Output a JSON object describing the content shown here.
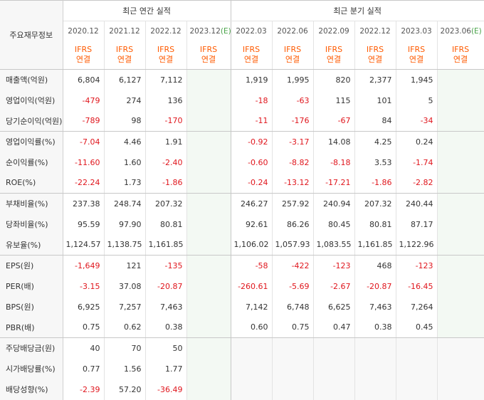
{
  "header": {
    "row_label": "주요재무정보",
    "annual_title": "최근 연간 실적",
    "quarter_title": "최근 분기 실적",
    "annual_periods": [
      "2020.12",
      "2021.12",
      "2022.12",
      "2023.12(E)"
    ],
    "quarter_periods": [
      "2022.03",
      "2022.06",
      "2022.09",
      "2022.12",
      "2023.03",
      "2023.06(E)"
    ],
    "ifrs_line1": "IFRS",
    "ifrs_line2": "연결"
  },
  "rows": [
    {
      "label": "매출액(억원)",
      "annual": [
        "6,804",
        "6,127",
        "7,112",
        ""
      ],
      "quarter": [
        "1,919",
        "1,995",
        "820",
        "2,377",
        "1,945",
        ""
      ]
    },
    {
      "label": "영업이익(억원)",
      "annual": [
        "-479",
        "274",
        "136",
        ""
      ],
      "quarter": [
        "-18",
        "-63",
        "115",
        "101",
        "5",
        ""
      ]
    },
    {
      "label": "당기순이익(억원)",
      "annual": [
        "-789",
        "98",
        "-170",
        ""
      ],
      "quarter": [
        "-11",
        "-176",
        "-67",
        "84",
        "-34",
        ""
      ]
    },
    {
      "label": "영업이익률(%)",
      "annual": [
        "-7.04",
        "4.46",
        "1.91",
        ""
      ],
      "quarter": [
        "-0.92",
        "-3.17",
        "14.08",
        "4.25",
        "0.24",
        ""
      ]
    },
    {
      "label": "순이익률(%)",
      "annual": [
        "-11.60",
        "1.60",
        "-2.40",
        ""
      ],
      "quarter": [
        "-0.60",
        "-8.82",
        "-8.18",
        "3.53",
        "-1.74",
        ""
      ]
    },
    {
      "label": "ROE(%)",
      "annual": [
        "-22.24",
        "1.73",
        "-1.86",
        ""
      ],
      "quarter": [
        "-0.24",
        "-13.12",
        "-17.21",
        "-1.86",
        "-2.82",
        ""
      ]
    },
    {
      "label": "부채비율(%)",
      "annual": [
        "237.38",
        "248.74",
        "207.32",
        ""
      ],
      "quarter": [
        "246.27",
        "257.92",
        "240.94",
        "207.32",
        "240.44",
        ""
      ]
    },
    {
      "label": "당좌비율(%)",
      "annual": [
        "95.59",
        "97.90",
        "80.81",
        ""
      ],
      "quarter": [
        "92.61",
        "86.26",
        "80.45",
        "80.81",
        "87.17",
        ""
      ]
    },
    {
      "label": "유보율(%)",
      "annual": [
        "1,124.57",
        "1,138.75",
        "1,161.85",
        ""
      ],
      "quarter": [
        "1,106.02",
        "1,057.93",
        "1,083.55",
        "1,161.85",
        "1,122.96",
        ""
      ]
    },
    {
      "label": "EPS(원)",
      "annual": [
        "-1,649",
        "121",
        "-135",
        ""
      ],
      "quarter": [
        "-58",
        "-422",
        "-123",
        "468",
        "-123",
        ""
      ]
    },
    {
      "label": "PER(배)",
      "annual": [
        "-3.15",
        "37.08",
        "-20.87",
        ""
      ],
      "quarter": [
        "-260.61",
        "-5.69",
        "-2.67",
        "-20.87",
        "-16.45",
        ""
      ]
    },
    {
      "label": "BPS(원)",
      "annual": [
        "6,925",
        "7,257",
        "7,463",
        ""
      ],
      "quarter": [
        "7,142",
        "6,748",
        "6,625",
        "7,463",
        "7,264",
        ""
      ]
    },
    {
      "label": "PBR(배)",
      "annual": [
        "0.75",
        "0.62",
        "0.38",
        ""
      ],
      "quarter": [
        "0.60",
        "0.75",
        "0.47",
        "0.38",
        "0.45",
        ""
      ]
    },
    {
      "label": "주당배당금(원)",
      "annual": [
        "40",
        "70",
        "50",
        ""
      ],
      "quarter": null
    },
    {
      "label": "시가배당률(%)",
      "annual": [
        "0.77",
        "1.56",
        "1.77",
        ""
      ],
      "quarter": null
    },
    {
      "label": "배당성향(%)",
      "annual": [
        "-2.39",
        "57.20",
        "-36.49",
        ""
      ],
      "quarter": null
    }
  ],
  "colors": {
    "negative": "#e0161d",
    "ifrs": "#ff5a00",
    "estimate_bg": "#f3f9f3",
    "label_bg": "#f7f7f7"
  }
}
